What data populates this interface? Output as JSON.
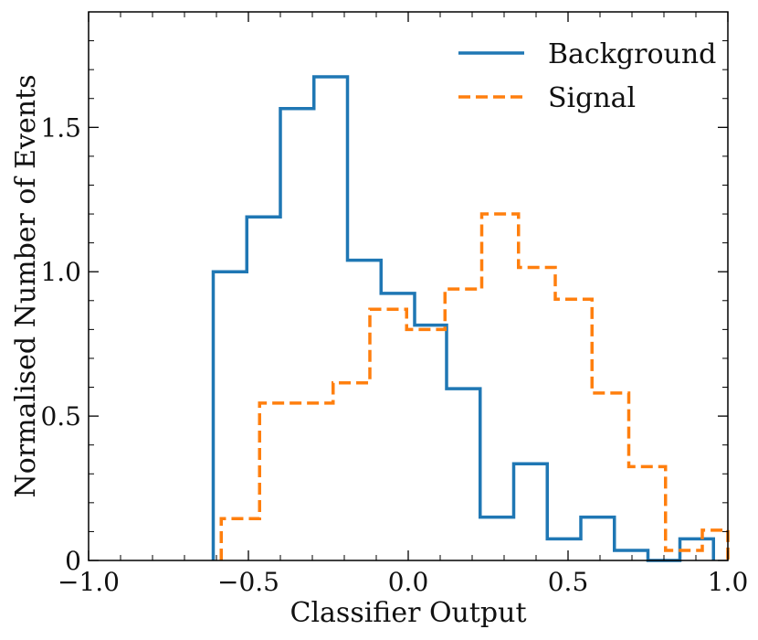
{
  "chart_data": {
    "type": "histogram-step",
    "title": "",
    "xlabel": "Classifier Output",
    "ylabel": "Normalised Number of Events",
    "xlim": [
      -1.0,
      1.0
    ],
    "ylim": [
      0,
      1.9
    ],
    "x_ticks": [
      -1.0,
      -0.5,
      0.0,
      0.5,
      1.0
    ],
    "x_tick_labels": [
      "−1.0",
      "−0.5",
      "0.0",
      "0.5",
      "1.0"
    ],
    "y_ticks": [
      0,
      0.5,
      1.0,
      1.5
    ],
    "y_tick_labels": [
      "0",
      "0.5",
      "1.0",
      "1.5"
    ],
    "legend_position": "top-right",
    "series": [
      {
        "name": "Background",
        "color": "#1f77b4",
        "style": "solid",
        "edges": [
          -0.61,
          -0.505,
          -0.4,
          -0.295,
          -0.19,
          -0.085,
          0.02,
          0.12,
          0.225,
          0.33,
          0.435,
          0.54,
          0.645,
          0.75,
          0.85,
          0.955
        ],
        "values": [
          1.0,
          1.19,
          1.565,
          1.675,
          1.04,
          0.925,
          0.815,
          0.595,
          0.15,
          0.335,
          0.075,
          0.15,
          0.035,
          0.0,
          0.075
        ]
      },
      {
        "name": "Signal",
        "color": "#ff7f0e",
        "style": "dashed",
        "edges": [
          -0.585,
          -0.465,
          -0.35,
          -0.235,
          -0.12,
          -0.005,
          0.115,
          0.23,
          0.345,
          0.46,
          0.575,
          0.69,
          0.805,
          0.92,
          1.0
        ],
        "values": [
          0.145,
          0.545,
          0.545,
          0.615,
          0.87,
          0.8,
          0.94,
          1.2,
          1.015,
          0.905,
          0.58,
          0.325,
          0.035,
          0.105
        ]
      }
    ]
  }
}
